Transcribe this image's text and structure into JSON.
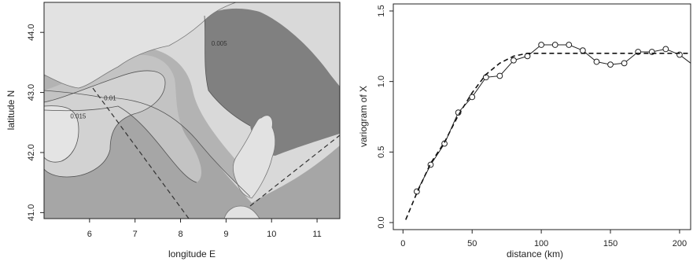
{
  "chart_data": [
    {
      "type": "contour-map",
      "xlabel": "longitude E",
      "ylabel": "latitude N",
      "xlim": [
        5.0,
        11.5
      ],
      "ylim": [
        40.9,
        44.5
      ],
      "x_ticks": [
        "6",
        "7",
        "8",
        "9",
        "10",
        "11"
      ],
      "y_ticks": [
        "41.0",
        "42.0",
        "43.0",
        "44.0"
      ],
      "contour_labels": [
        {
          "text": "0.015",
          "lon": 5.75,
          "lat": 42.57
        },
        {
          "text": "0.01",
          "lon": 6.45,
          "lat": 42.87
        },
        {
          "text": "0.005",
          "lon": 8.85,
          "lat": 43.78
        }
      ],
      "grid": false,
      "colors": {
        "background": "#d9d9d9",
        "level_1": "#a6a6a6",
        "level_2": "#b3b3b3",
        "level_3": "#c3c3c3",
        "level_4": "#d2d2d2",
        "level_5": "#e4e4e4",
        "dark_area": "#808080",
        "land": "#e2e2e2"
      }
    },
    {
      "type": "line",
      "xlabel": "distance (km)",
      "ylabel": "variogram of X",
      "xlim": [
        -7,
        208
      ],
      "ylim": [
        -0.05,
        1.55
      ],
      "x_ticks": [
        "0",
        "50",
        "100",
        "150",
        "200"
      ],
      "y_ticks": [
        "0.0",
        "0.5",
        "1.0",
        "1.5"
      ],
      "grid": false,
      "series": [
        {
          "style": "solid-with-circles",
          "x": [
            10,
            20,
            30,
            40,
            50,
            60,
            70,
            80,
            90,
            100,
            110,
            120,
            130,
            140,
            150,
            160,
            170,
            180,
            190,
            200,
            208
          ],
          "y": [
            0.22,
            0.41,
            0.56,
            0.78,
            0.89,
            1.03,
            1.04,
            1.15,
            1.18,
            1.26,
            1.26,
            1.26,
            1.22,
            1.14,
            1.12,
            1.13,
            1.21,
            1.21,
            1.23,
            1.19,
            1.13
          ],
          "markers": [
            true,
            true,
            true,
            true,
            true,
            true,
            true,
            true,
            true,
            true,
            true,
            true,
            true,
            true,
            true,
            true,
            true,
            true,
            true,
            true,
            false
          ]
        },
        {
          "style": "dashed",
          "x": [
            2,
            10,
            20,
            30,
            40,
            50,
            60,
            70,
            80,
            90,
            100,
            110,
            120,
            140,
            160,
            180,
            208
          ],
          "y": [
            0.02,
            0.21,
            0.42,
            0.57,
            0.76,
            0.92,
            1.05,
            1.13,
            1.18,
            1.2,
            1.2,
            1.2,
            1.2,
            1.2,
            1.2,
            1.2,
            1.2
          ]
        }
      ]
    }
  ]
}
